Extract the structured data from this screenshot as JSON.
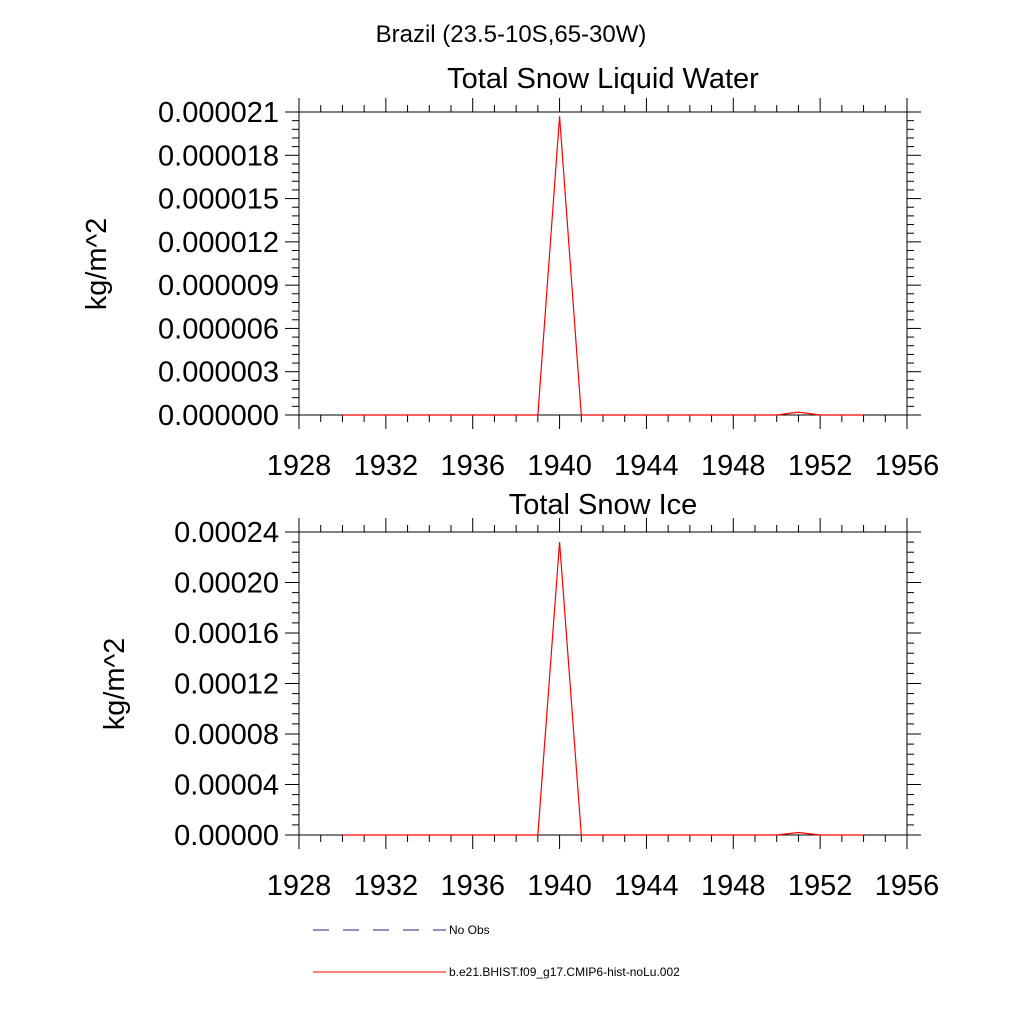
{
  "figure_title": "Brazil (23.5-10S,65-30W)",
  "chart_data": [
    {
      "type": "line",
      "title": "Total Snow Liquid Water",
      "xlabel": "",
      "ylabel": "kg/m^2",
      "xlim": [
        1928,
        1956
      ],
      "ylim": [
        0,
        2.1e-05
      ],
      "x_ticks": [
        "1928",
        "1932",
        "1936",
        "1940",
        "1944",
        "1948",
        "1952",
        "1956"
      ],
      "y_ticks": [
        "0.000000",
        "0.000003",
        "0.000006",
        "0.000009",
        "0.000012",
        "0.000015",
        "0.000018",
        "0.000021"
      ],
      "grid": false,
      "series": [
        {
          "name": "b.e21.BHIST.f09_g17.CMIP6-hist-noLu.002",
          "color": "#ff0000",
          "x": [
            1930,
            1931,
            1932,
            1933,
            1934,
            1935,
            1936,
            1937,
            1938,
            1939,
            1940,
            1941,
            1942,
            1943,
            1944,
            1945,
            1946,
            1947,
            1948,
            1949,
            1950,
            1951,
            1952,
            1953,
            1954
          ],
          "values": [
            0,
            0,
            0,
            0,
            0,
            0,
            0,
            0,
            0,
            0,
            2.07e-05,
            0,
            0,
            0,
            0,
            0,
            0,
            0,
            0,
            0,
            0,
            2e-07,
            0,
            0,
            0
          ]
        }
      ]
    },
    {
      "type": "line",
      "title": "Total Snow Ice",
      "xlabel": "",
      "ylabel": "kg/m^2",
      "xlim": [
        1928,
        1956
      ],
      "ylim": [
        0,
        0.00024
      ],
      "x_ticks": [
        "1928",
        "1932",
        "1936",
        "1940",
        "1944",
        "1948",
        "1952",
        "1956"
      ],
      "y_ticks": [
        "0.00000",
        "0.00004",
        "0.00008",
        "0.00012",
        "0.00016",
        "0.00020",
        "0.00024"
      ],
      "grid": false,
      "series": [
        {
          "name": "b.e21.BHIST.f09_g17.CMIP6-hist-noLu.002",
          "color": "#ff0000",
          "x": [
            1930,
            1931,
            1932,
            1933,
            1934,
            1935,
            1936,
            1937,
            1938,
            1939,
            1940,
            1941,
            1942,
            1943,
            1944,
            1945,
            1946,
            1947,
            1948,
            1949,
            1950,
            1951,
            1952,
            1953,
            1954
          ],
          "values": [
            0,
            0,
            0,
            0,
            0,
            0,
            0,
            0,
            0,
            0,
            0.000232,
            0,
            0,
            0,
            0,
            0,
            0,
            0,
            0,
            0,
            0,
            2e-06,
            0,
            0,
            0
          ]
        }
      ]
    }
  ],
  "legend": {
    "placement": "bottom",
    "entries": [
      {
        "label": "No Obs",
        "color": "#1f2a7a",
        "dash": "dashed"
      },
      {
        "label": "b.e21.BHIST.f09_g17.CMIP6-hist-noLu.002",
        "color": "#ff0000",
        "dash": "solid"
      }
    ]
  }
}
